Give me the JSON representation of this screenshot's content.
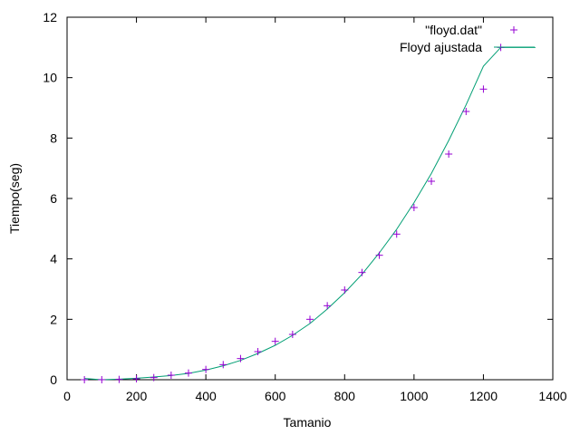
{
  "chart_data": {
    "type": "scatter",
    "xlabel": "Tamanio",
    "ylabel": "Tiempo(seg)",
    "xlim": [
      0,
      1400
    ],
    "ylim": [
      0,
      12
    ],
    "xticks": [
      0,
      200,
      400,
      600,
      800,
      1000,
      1200,
      1400
    ],
    "yticks": [
      0,
      2,
      4,
      6,
      8,
      10,
      12
    ],
    "grid": false,
    "legend_position": "top-right",
    "series": [
      {
        "name": "\"floyd.dat\"",
        "kind": "points",
        "marker": "plus",
        "color": "#9400d3",
        "x": [
          50,
          100,
          150,
          200,
          250,
          300,
          350,
          400,
          450,
          500,
          550,
          600,
          650,
          700,
          750,
          800,
          850,
          900,
          950,
          1000,
          1050,
          1100,
          1150,
          1200,
          1250
        ],
        "y": [
          0.0,
          0.0,
          0.01,
          0.03,
          0.07,
          0.15,
          0.22,
          0.34,
          0.5,
          0.7,
          0.93,
          1.27,
          1.5,
          2.0,
          2.45,
          2.97,
          3.55,
          4.12,
          4.82,
          5.7,
          6.57,
          7.47,
          8.88,
          9.62,
          11.0
        ]
      },
      {
        "name": "Floyd ajustada",
        "kind": "line",
        "marker": "none",
        "color": "#009e73",
        "x": [
          50,
          100,
          150,
          200,
          250,
          300,
          350,
          400,
          450,
          500,
          550,
          600,
          650,
          700,
          750,
          800,
          850,
          900,
          950,
          1000,
          1050,
          1100,
          1150,
          1200,
          1250,
          1350
        ],
        "y": [
          0.04,
          0.0,
          0.02,
          0.05,
          0.09,
          0.14,
          0.21,
          0.32,
          0.46,
          0.64,
          0.87,
          1.14,
          1.47,
          1.86,
          2.34,
          2.88,
          3.49,
          4.2,
          4.98,
          5.86,
          6.83,
          7.92,
          9.1,
          10.38,
          11.0,
          11.0
        ]
      }
    ]
  }
}
